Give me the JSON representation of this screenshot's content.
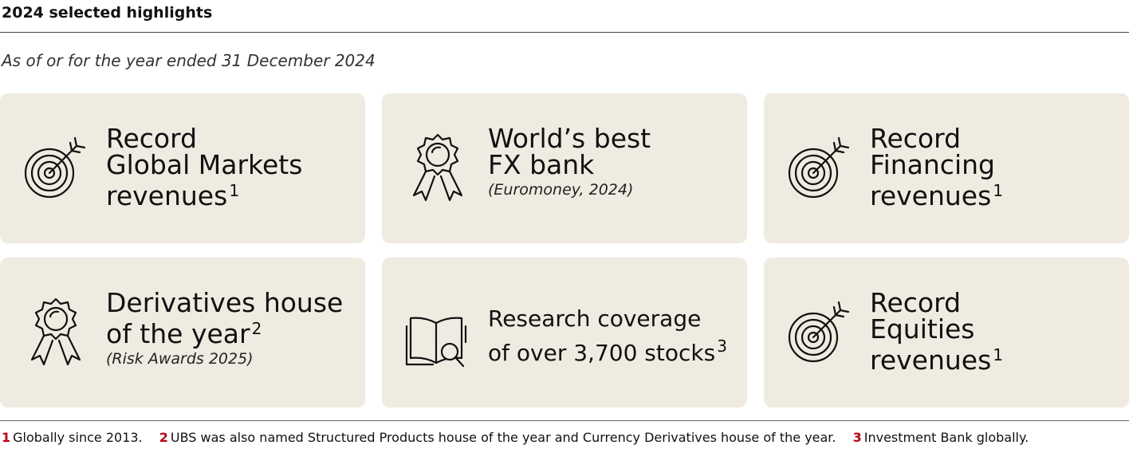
{
  "header": {
    "title": "2024 selected highlights",
    "subtitle": "As of or for the year ended 31 December 2024"
  },
  "colors": {
    "card_background": "#f0ebe1",
    "footnote_number": "#b7001a"
  },
  "cards": [
    {
      "icon": "target-icon",
      "lines": [
        "Record",
        "Global Markets",
        "revenues"
      ],
      "sup": "1",
      "source": ""
    },
    {
      "icon": "award-ribbon-icon",
      "lines": [
        "World’s best",
        "FX bank"
      ],
      "sup": "",
      "source": "(Euromoney, 2024)"
    },
    {
      "icon": "target-icon",
      "lines": [
        "Record",
        "Financing",
        "revenues"
      ],
      "sup": "1",
      "source": ""
    },
    {
      "icon": "award-ribbon-icon",
      "lines": [
        "Derivatives house",
        "of the year"
      ],
      "sup": "2",
      "source": "(Risk Awards 2025)"
    },
    {
      "icon": "book-search-icon",
      "lines": [
        "Research coverage",
        "of over 3,700 stocks"
      ],
      "sup": "3",
      "source": ""
    },
    {
      "icon": "target-icon",
      "lines": [
        "Record",
        "Equities",
        "revenues"
      ],
      "sup": "1",
      "source": ""
    }
  ],
  "footnotes": [
    {
      "num": "1",
      "text": "Globally since 2013."
    },
    {
      "num": "2",
      "text": "UBS was also named Structured Products house of the year and Currency Derivatives house of the year."
    },
    {
      "num": "3",
      "text": "Investment Bank globally."
    }
  ]
}
